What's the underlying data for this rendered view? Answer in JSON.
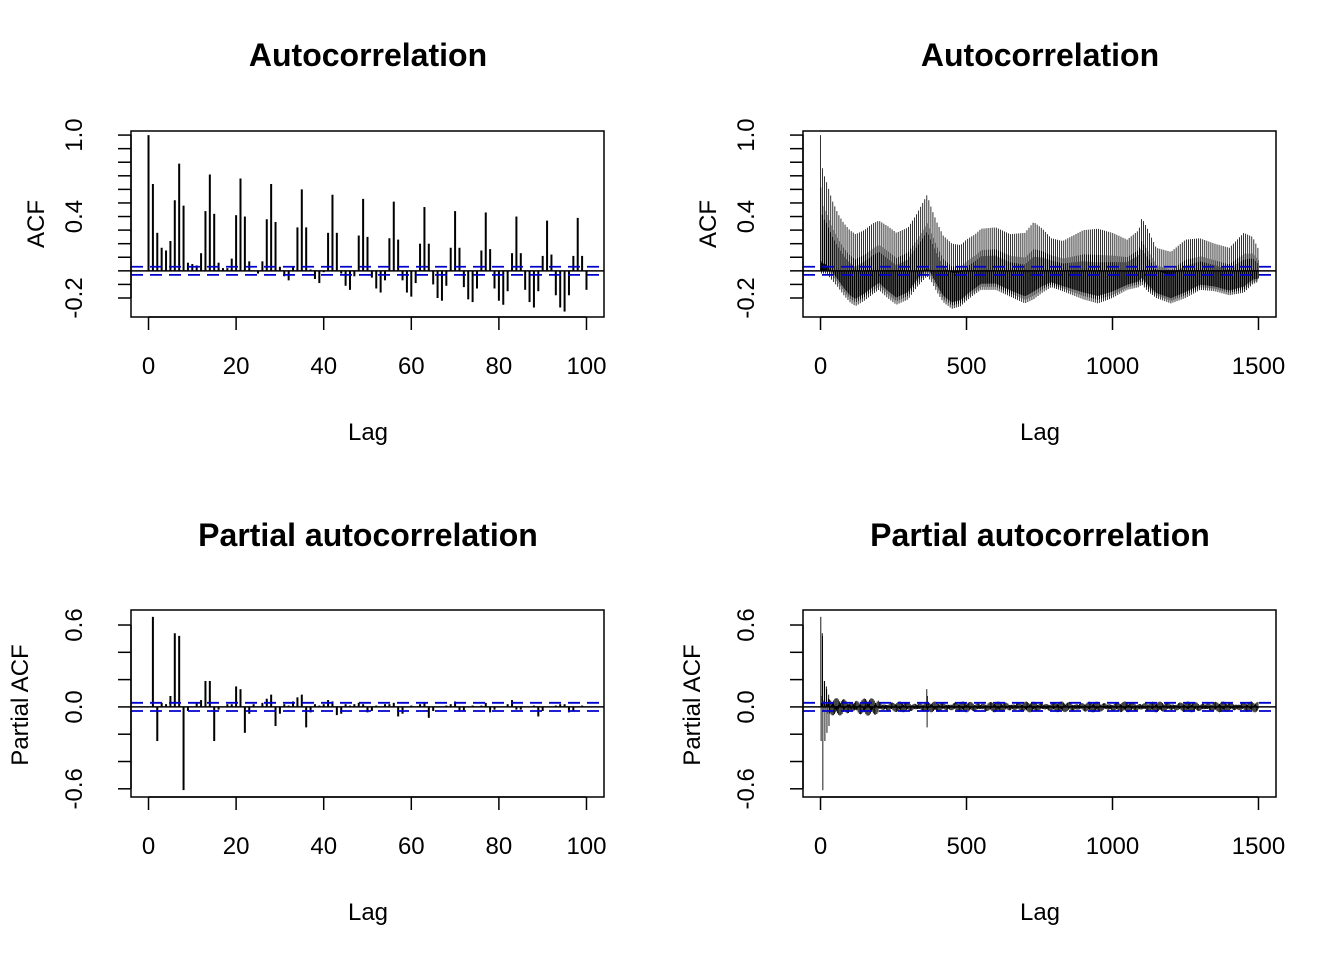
{
  "colors": {
    "bar": "#000000",
    "axis": "#000000",
    "confidence_band": "#0000cd",
    "background": "#ffffff"
  },
  "chart_data": [
    {
      "id": "acf-short",
      "type": "bar",
      "title": "Autocorrelation",
      "xlabel": "Lag",
      "ylabel": "ACF",
      "xlim": [
        -4,
        104
      ],
      "ylim": [
        -0.34,
        1.03
      ],
      "xticks": [
        0,
        20,
        40,
        60,
        80,
        100
      ],
      "xtick_labels": [
        "0",
        "20",
        "40",
        "60",
        "80",
        "100"
      ],
      "yticks": [
        -0.2,
        -0.1,
        0.0,
        0.1,
        0.2,
        0.3,
        0.4,
        0.5,
        0.6,
        0.7,
        0.8,
        0.9,
        1.0
      ],
      "ytick_labels": [
        {
          "value": -0.2,
          "label": "-0.2"
        },
        {
          "value": 0.4,
          "label": "0.4"
        },
        {
          "value": 1.0,
          "label": "1.0"
        }
      ],
      "confidence_band": [
        0.03,
        -0.03
      ],
      "grid": false,
      "x": [
        0,
        1,
        2,
        3,
        4,
        5,
        6,
        7,
        8,
        9,
        10,
        11,
        12,
        13,
        14,
        15,
        16,
        17,
        18,
        19,
        20,
        21,
        22,
        23,
        24,
        25,
        26,
        27,
        28,
        29,
        30,
        31,
        32,
        33,
        34,
        35,
        36,
        37,
        38,
        39,
        40,
        41,
        42,
        43,
        44,
        45,
        46,
        47,
        48,
        49,
        50,
        51,
        52,
        53,
        54,
        55,
        56,
        57,
        58,
        59,
        60,
        61,
        62,
        63,
        64,
        65,
        66,
        67,
        68,
        69,
        70,
        71,
        72,
        73,
        74,
        75,
        76,
        77,
        78,
        79,
        80,
        81,
        82,
        83,
        84,
        85,
        86,
        87,
        88,
        89,
        90,
        91,
        92,
        93,
        94,
        95,
        96,
        97,
        98,
        99,
        100
      ],
      "values": [
        1.0,
        0.64,
        0.28,
        0.17,
        0.15,
        0.22,
        0.52,
        0.79,
        0.48,
        0.06,
        0.05,
        0.04,
        0.13,
        0.44,
        0.71,
        0.42,
        0.06,
        0.02,
        0.02,
        0.09,
        0.41,
        0.68,
        0.4,
        0.07,
        0.0,
        -0.02,
        0.07,
        0.38,
        0.64,
        0.36,
        0.03,
        -0.04,
        -0.07,
        0.03,
        0.32,
        0.6,
        0.32,
        0.01,
        -0.06,
        -0.09,
        -0.01,
        0.28,
        0.56,
        0.28,
        -0.02,
        -0.11,
        -0.14,
        -0.04,
        0.26,
        0.53,
        0.25,
        -0.05,
        -0.13,
        -0.16,
        -0.07,
        0.24,
        0.51,
        0.23,
        -0.07,
        -0.16,
        -0.19,
        -0.09,
        0.2,
        0.47,
        0.2,
        -0.1,
        -0.2,
        -0.22,
        -0.11,
        0.17,
        0.44,
        0.17,
        -0.12,
        -0.21,
        -0.23,
        -0.13,
        0.15,
        0.43,
        0.16,
        -0.13,
        -0.22,
        -0.25,
        -0.15,
        0.13,
        0.4,
        0.13,
        -0.14,
        -0.23,
        -0.27,
        -0.15,
        0.11,
        0.37,
        0.12,
        -0.18,
        -0.27,
        -0.3,
        -0.18,
        0.11,
        0.39,
        0.11,
        -0.14
      ]
    },
    {
      "id": "acf-long",
      "type": "bar",
      "title": "Autocorrelation",
      "xlabel": "Lag",
      "ylabel": "ACF",
      "xlim": [
        -60,
        1560
      ],
      "ylim": [
        -0.34,
        1.03
      ],
      "xticks": [
        0,
        500,
        1000,
        1500
      ],
      "xtick_labels": [
        "0",
        "500",
        "1000",
        "1500"
      ],
      "yticks": [
        -0.2,
        -0.1,
        0.0,
        0.1,
        0.2,
        0.3,
        0.4,
        0.5,
        0.6,
        0.7,
        0.8,
        0.9,
        1.0
      ],
      "ytick_labels": [
        {
          "value": -0.2,
          "label": "-0.2"
        },
        {
          "value": 0.4,
          "label": "0.4"
        },
        {
          "value": 1.0,
          "label": "1.0"
        }
      ],
      "confidence_band": [
        0.03,
        -0.03
      ],
      "grid": false,
      "max_lag": 1500,
      "envelope_x": [
        0,
        5,
        10,
        20,
        40,
        60,
        80,
        100,
        120,
        150,
        180,
        200,
        230,
        260,
        300,
        330,
        365,
        380,
        400,
        420,
        450,
        480,
        500,
        530,
        550,
        600,
        650,
        700,
        730,
        760,
        790,
        830,
        900,
        950,
        1000,
        1050,
        1090,
        1100,
        1120,
        1150,
        1200,
        1250,
        1300,
        1350,
        1400,
        1450,
        1480,
        1500
      ],
      "envelope_upper": [
        1.0,
        0.78,
        0.72,
        0.66,
        0.52,
        0.42,
        0.35,
        0.3,
        0.27,
        0.3,
        0.35,
        0.37,
        0.33,
        0.28,
        0.32,
        0.42,
        0.56,
        0.46,
        0.35,
        0.26,
        0.2,
        0.19,
        0.23,
        0.27,
        0.31,
        0.32,
        0.27,
        0.28,
        0.36,
        0.31,
        0.24,
        0.22,
        0.3,
        0.31,
        0.28,
        0.23,
        0.3,
        0.39,
        0.31,
        0.17,
        0.14,
        0.23,
        0.24,
        0.2,
        0.17,
        0.28,
        0.25,
        0.16
      ],
      "envelope_lower": [
        -0.02,
        -0.02,
        -0.02,
        -0.02,
        -0.07,
        -0.12,
        -0.18,
        -0.23,
        -0.26,
        -0.22,
        -0.17,
        -0.14,
        -0.2,
        -0.25,
        -0.21,
        -0.12,
        -0.04,
        -0.08,
        -0.16,
        -0.23,
        -0.28,
        -0.26,
        -0.22,
        -0.17,
        -0.14,
        -0.14,
        -0.19,
        -0.24,
        -0.21,
        -0.16,
        -0.12,
        -0.15,
        -0.21,
        -0.24,
        -0.2,
        -0.14,
        -0.12,
        -0.1,
        -0.15,
        -0.2,
        -0.24,
        -0.2,
        -0.14,
        -0.15,
        -0.18,
        -0.16,
        -0.1,
        -0.08
      ]
    },
    {
      "id": "pacf-short",
      "type": "bar",
      "title": "Partial autocorrelation",
      "xlabel": "Lag",
      "ylabel": "Partial ACF",
      "xlim": [
        -4,
        104
      ],
      "ylim": [
        -0.66,
        0.71
      ],
      "xticks": [
        0,
        20,
        40,
        60,
        80,
        100
      ],
      "xtick_labels": [
        "0",
        "20",
        "40",
        "60",
        "80",
        "100"
      ],
      "yticks": [
        -0.6,
        -0.4,
        -0.2,
        0.0,
        0.2,
        0.4,
        0.6
      ],
      "ytick_labels": [
        {
          "value": -0.6,
          "label": "-0.6"
        },
        {
          "value": 0.0,
          "label": "0.0"
        },
        {
          "value": 0.6,
          "label": "0.6"
        }
      ],
      "confidence_band": [
        0.03,
        -0.03
      ],
      "grid": false,
      "x": [
        1,
        2,
        3,
        4,
        5,
        6,
        7,
        8,
        9,
        10,
        11,
        12,
        13,
        14,
        15,
        16,
        17,
        18,
        19,
        20,
        21,
        22,
        23,
        24,
        25,
        26,
        27,
        28,
        29,
        30,
        31,
        32,
        33,
        34,
        35,
        36,
        37,
        38,
        39,
        40,
        41,
        42,
        43,
        44,
        45,
        46,
        47,
        48,
        49,
        50,
        51,
        52,
        53,
        54,
        55,
        56,
        57,
        58,
        59,
        60,
        61,
        62,
        63,
        64,
        65,
        66,
        67,
        68,
        69,
        70,
        71,
        72,
        73,
        74,
        75,
        76,
        77,
        78,
        79,
        80,
        81,
        82,
        83,
        84,
        85,
        86,
        87,
        88,
        89,
        90,
        91,
        92,
        93,
        94,
        95,
        96,
        97,
        98,
        99
      ],
      "values": [
        0.66,
        -0.25,
        0.03,
        0.02,
        0.08,
        0.54,
        0.52,
        -0.61,
        -0.03,
        0.0,
        0.03,
        0.05,
        0.19,
        0.19,
        -0.25,
        -0.02,
        0.0,
        0.02,
        0.02,
        0.15,
        0.13,
        -0.19,
        -0.05,
        0.02,
        0.0,
        0.03,
        0.06,
        0.09,
        -0.14,
        -0.05,
        0.02,
        0.01,
        0.04,
        0.07,
        0.09,
        -0.15,
        -0.04,
        0.02,
        0.01,
        0.02,
        0.05,
        0.04,
        -0.06,
        -0.05,
        0.02,
        0.01,
        0.02,
        0.03,
        0.02,
        -0.04,
        -0.03,
        0.01,
        0.0,
        0.02,
        0.02,
        0.03,
        -0.07,
        -0.05,
        0.0,
        0.01,
        0.0,
        0.02,
        0.03,
        -0.08,
        -0.03,
        0.0,
        0.0,
        0.01,
        0.02,
        0.04,
        -0.03,
        -0.03,
        0.0,
        0.01,
        0.0,
        0.01,
        0.03,
        -0.04,
        -0.02,
        0.0,
        0.0,
        0.02,
        0.05,
        -0.02,
        -0.02,
        0.0,
        0.0,
        0.01,
        -0.07,
        -0.03,
        0.0,
        0.0,
        0.01,
        0.02,
        0.02,
        -0.04,
        -0.03,
        0.0,
        0.01
      ]
    },
    {
      "id": "pacf-long",
      "type": "bar",
      "title": "Partial autocorrelation",
      "xlabel": "Lag",
      "ylabel": "Partial ACF",
      "xlim": [
        -60,
        1560
      ],
      "ylim": [
        -0.66,
        0.71
      ],
      "xticks": [
        0,
        500,
        1000,
        1500
      ],
      "xtick_labels": [
        "0",
        "500",
        "1000",
        "1500"
      ],
      "yticks": [
        -0.6,
        -0.4,
        -0.2,
        0.0,
        0.2,
        0.4,
        0.6
      ],
      "ytick_labels": [
        {
          "value": -0.6,
          "label": "-0.6"
        },
        {
          "value": 0.0,
          "label": "0.0"
        },
        {
          "value": 0.6,
          "label": "0.6"
        }
      ],
      "confidence_band": [
        0.03,
        -0.03
      ],
      "grid": false,
      "max_lag": 1500,
      "leading_values": [
        0.66,
        -0.25,
        0.03,
        0.02,
        0.08,
        0.54,
        0.52,
        -0.61,
        -0.03,
        0.0,
        0.03,
        0.05,
        0.19,
        0.19,
        -0.25,
        -0.02,
        0.0,
        0.02,
        0.02,
        0.15,
        0.13,
        -0.19,
        -0.05,
        0.02,
        0.0,
        0.03,
        0.06,
        0.09,
        -0.14,
        -0.05
      ],
      "spike_lags": [
        364,
        365,
        366
      ],
      "spike_values": [
        0.13,
        -0.15,
        0.08
      ],
      "tail_amplitude": 0.05
    }
  ]
}
